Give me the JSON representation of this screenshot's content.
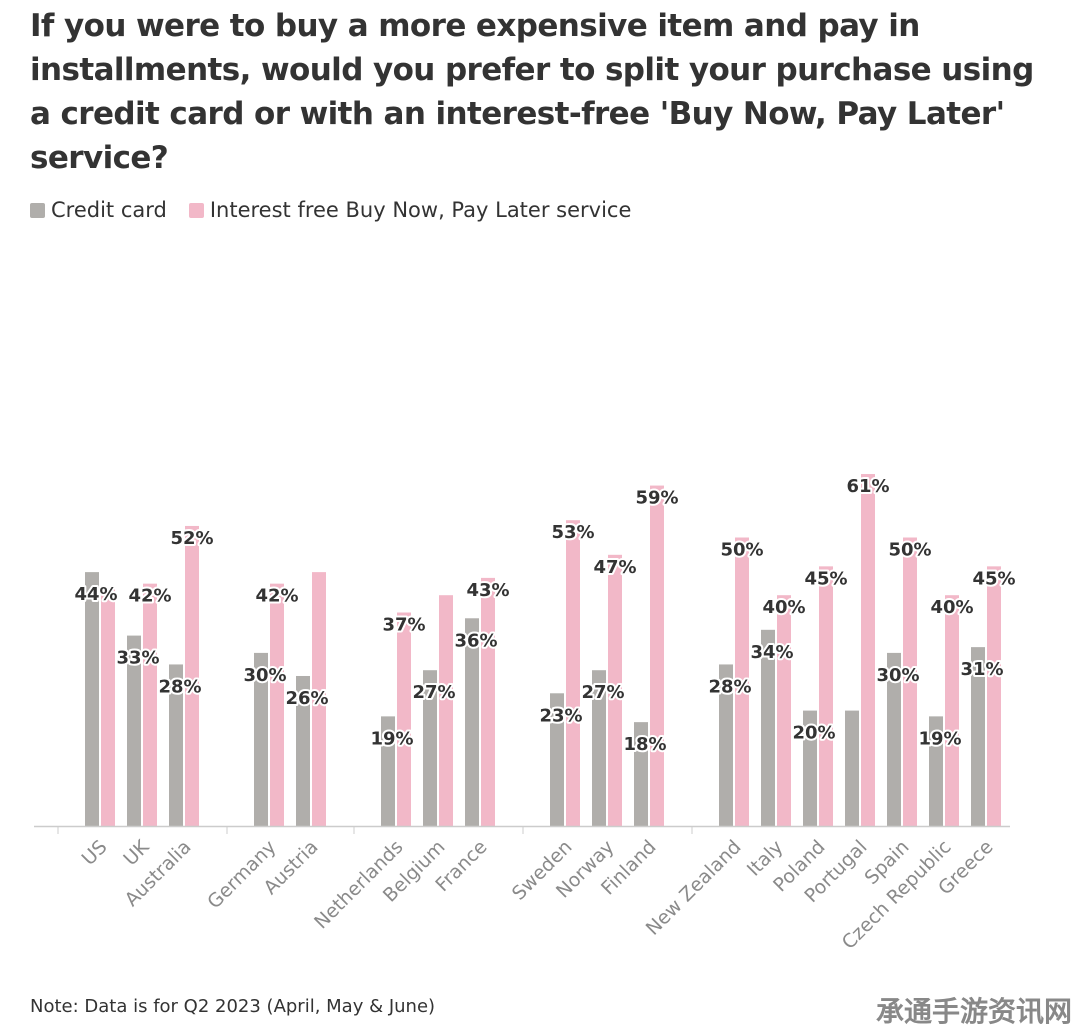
{
  "title": "If you were to buy a more expensive item and pay in installments, would you prefer to split your purchase using a credit card or with an interest-free 'Buy Now, Pay Later' service?",
  "note": "Note: Data is for Q2 2023 (April, May & June)",
  "watermark": "承通手游资讯网",
  "colors": {
    "credit": "#b0aeab",
    "bnpl": "#f2b8c8",
    "axis": "#cccccc",
    "tick": "#999999"
  },
  "legend": [
    {
      "label": "Credit card",
      "color": "#b0aeab"
    },
    {
      "label": "Interest free Buy Now, Pay Later service",
      "color": "#f2b8c8"
    }
  ],
  "chart_data": {
    "type": "bar",
    "groups": [
      [
        "US",
        "UK",
        "Australia"
      ],
      [
        "Germany",
        "Austria"
      ],
      [
        "Netherlands",
        "Belgium",
        "France"
      ],
      [
        "Sweden",
        "Norway",
        "Finland"
      ],
      [
        "New Zealand",
        "Italy",
        "Poland",
        "Portugal",
        "Spain",
        "Czech Republic",
        "Greece"
      ]
    ],
    "categories": [
      "US",
      "UK",
      "Australia",
      "Germany",
      "Austria",
      "Netherlands",
      "Belgium",
      "France",
      "Sweden",
      "Norway",
      "Finland",
      "New Zealand",
      "Italy",
      "Poland",
      "Portugal",
      "Spain",
      "Czech Republic",
      "Greece"
    ],
    "series": [
      {
        "name": "Credit card",
        "values": [
          44,
          33,
          28,
          30,
          26,
          19,
          27,
          36,
          23,
          27,
          18,
          28,
          34,
          20,
          20,
          30,
          19,
          31
        ]
      },
      {
        "name": "Interest free Buy Now, Pay Later service",
        "values": [
          41,
          42,
          52,
          42,
          44,
          37,
          40,
          43,
          53,
          47,
          59,
          50,
          40,
          45,
          61,
          50,
          40,
          45
        ]
      }
    ],
    "labels": [
      {
        "category": "US",
        "text": "44%"
      },
      {
        "category": "UK",
        "text": "42%"
      },
      {
        "category": "UK",
        "text": "33%"
      },
      {
        "category": "Australia",
        "text": "52%"
      },
      {
        "category": "Australia",
        "text": "28%"
      },
      {
        "category": "Germany",
        "text": "42%"
      },
      {
        "category": "Germany",
        "text": "30%"
      },
      {
        "category": "Austria",
        "text": "26%"
      },
      {
        "category": "Netherlands",
        "text": "37%"
      },
      {
        "category": "Netherlands",
        "text": "19%"
      },
      {
        "category": "Belgium",
        "text": "27%"
      },
      {
        "category": "France",
        "text": "43%"
      },
      {
        "category": "France",
        "text": "36%"
      },
      {
        "category": "Sweden",
        "text": "53%"
      },
      {
        "category": "Sweden",
        "text": "23%"
      },
      {
        "category": "Norway",
        "text": "47%"
      },
      {
        "category": "Norway",
        "text": "27%"
      },
      {
        "category": "Finland",
        "text": "59%"
      },
      {
        "category": "Finland",
        "text": "18%"
      },
      {
        "category": "New Zealand",
        "text": "50%"
      },
      {
        "category": "New Zealand",
        "text": "28%"
      },
      {
        "category": "Italy",
        "text": "40%"
      },
      {
        "category": "Italy",
        "text": "34%"
      },
      {
        "category": "Poland",
        "text": "45%"
      },
      {
        "category": "Poland",
        "text": "20%"
      },
      {
        "category": "Portugal",
        "text": "61%"
      },
      {
        "category": "Spain",
        "text": "50%"
      },
      {
        "category": "Spain",
        "text": "30%"
      },
      {
        "category": "Czech Republic",
        "text": "40%"
      },
      {
        "category": "Czech Republic",
        "text": "19%"
      },
      {
        "category": "Greece",
        "text": "45%"
      },
      {
        "category": "Greece",
        "text": "31%"
      }
    ],
    "ylim": [
      0,
      61
    ],
    "grid": false,
    "legend_position": "top-left"
  }
}
